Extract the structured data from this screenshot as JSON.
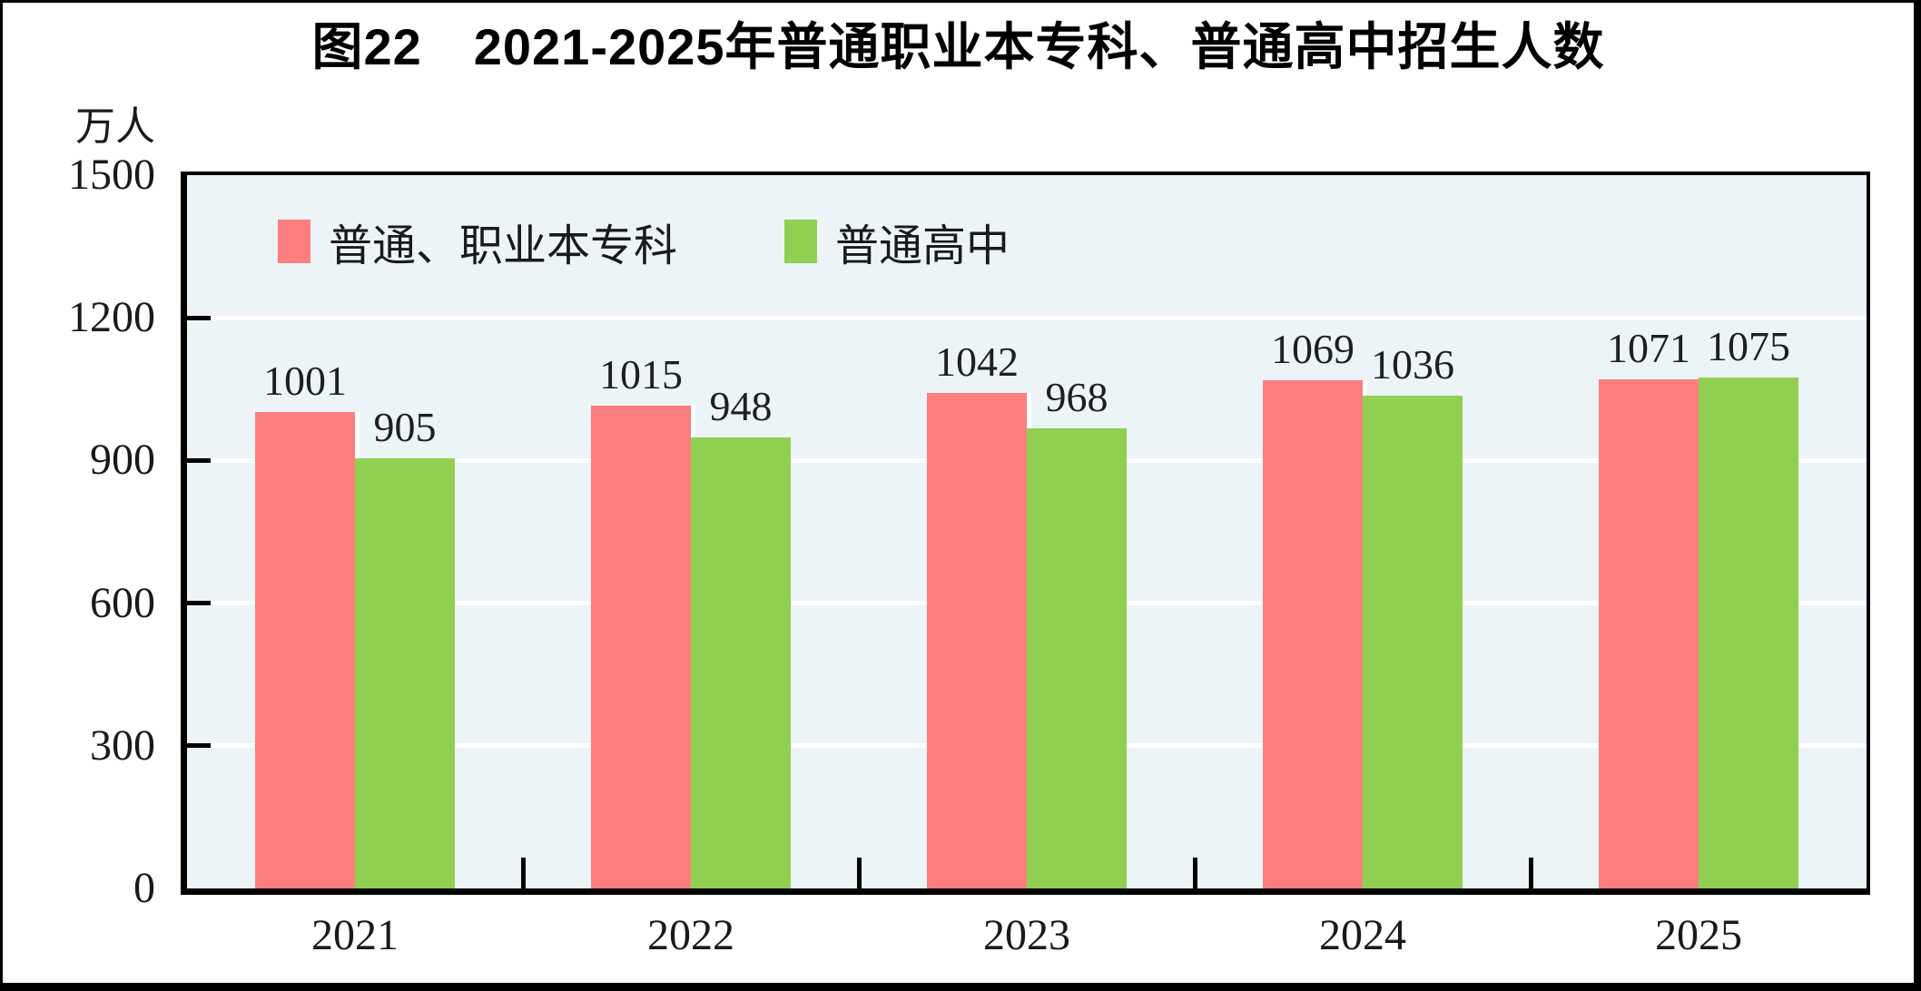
{
  "chart_data": {
    "type": "bar",
    "title": "图22　2021-2025年普通职业本专科、普通高中招生人数",
    "ylabel": "万人",
    "xlabel": "",
    "categories": [
      "2021",
      "2022",
      "2023",
      "2024",
      "2025"
    ],
    "series": [
      {
        "name": "普通、职业本专科",
        "color": "#FC7E7E",
        "values": [
          1001,
          1015,
          1042,
          1069,
          1071
        ]
      },
      {
        "name": "普通高中",
        "color": "#90D050",
        "values": [
          905,
          948,
          968,
          1036,
          1075
        ]
      }
    ],
    "ylim": [
      0,
      1500
    ],
    "yticks": [
      0,
      300,
      600,
      900,
      1200,
      1500
    ],
    "grid": true,
    "gridline_color": "#FFFFFF",
    "plot_background": "#ECF4F7",
    "axis_color": "#000000",
    "legend_position": "top-left-inside"
  }
}
